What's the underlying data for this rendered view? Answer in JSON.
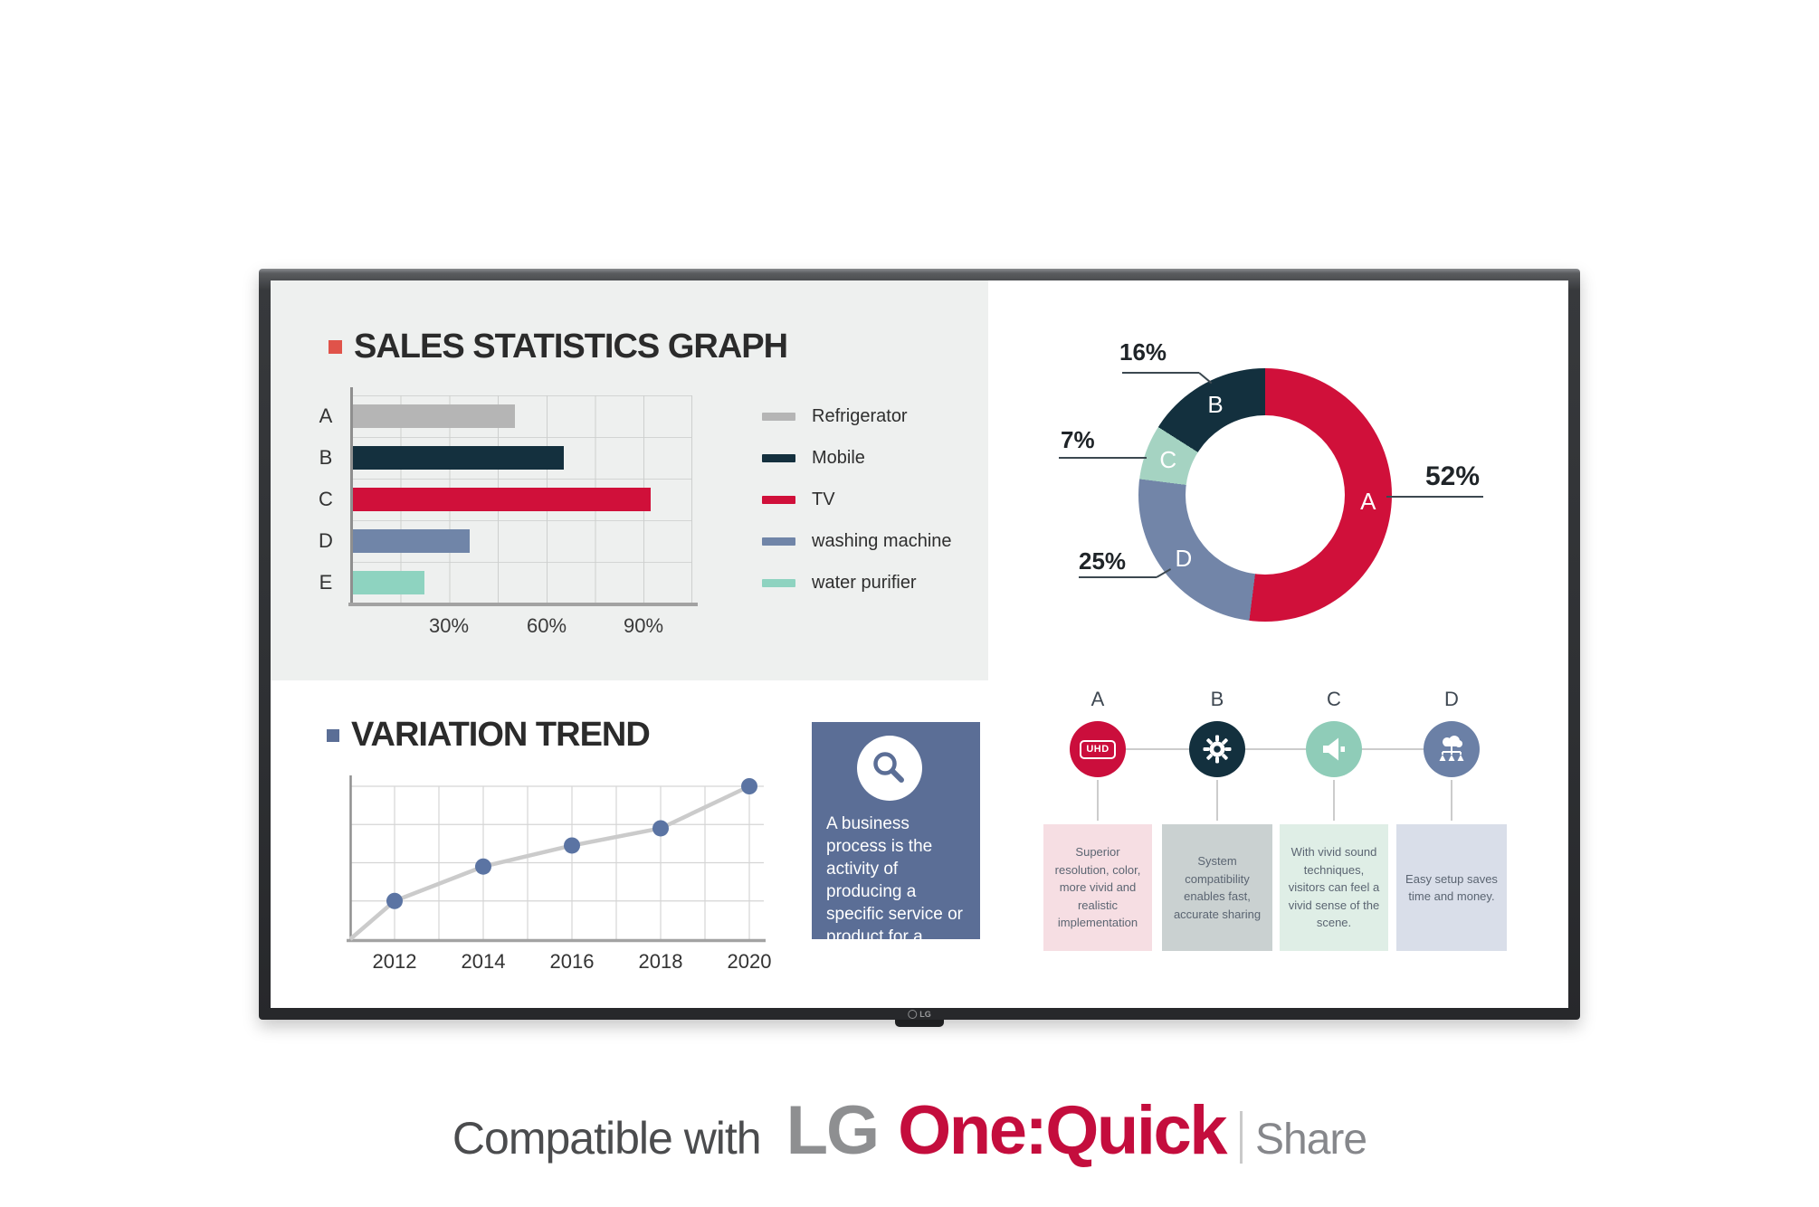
{
  "monitor": {
    "bezel_logo": "LG"
  },
  "sales_section": {
    "bullet_color": "#e0534a"
  },
  "trend_section": {
    "bullet_color": "#5b6e96"
  },
  "info_box": {
    "text": "A business process is the activity of producing a specific service or product for a customer.",
    "bg_color": "#5b6e96",
    "icon": "magnifier"
  },
  "features": {
    "connector_color": "#cccccc",
    "items": [
      {
        "letter": "A",
        "icon": "uhd-badge",
        "badge_text": "UHD",
        "circle_color": "#cb0e3c",
        "box_color": "#f6dee3",
        "text": "Superior resolution, color, more vivid and realistic implementation"
      },
      {
        "letter": "B",
        "icon": "gear",
        "circle_color": "#13303e",
        "box_color": "#cad1d1",
        "text": "System compatibility enables fast, accurate sharing"
      },
      {
        "letter": "C",
        "icon": "speaker",
        "circle_color": "#8fccb8",
        "box_color": "#dfeee6",
        "text": "With vivid sound techniques, visitors can feel a vivid sense of the scene."
      },
      {
        "letter": "D",
        "icon": "cloud-network",
        "circle_color": "#6b80a6",
        "box_color": "#d9dee9",
        "text": "Easy setup saves time and money."
      }
    ]
  },
  "tagline": {
    "prefix": "Compatible with",
    "brand": "LG",
    "product": "One:Quick",
    "suffix": "Share",
    "prefix_color": "#4b4c4e",
    "brand_color": "#8e8f91",
    "product_color": "#c40d3d",
    "suffix_color": "#86878b"
  },
  "chart_data": [
    {
      "type": "bar",
      "title": "SALES STATISTICS GRAPH",
      "orientation": "horizontal",
      "categories": [
        "A",
        "B",
        "C",
        "D",
        "E"
      ],
      "values": [
        50,
        65,
        92,
        36,
        22
      ],
      "unit": "%",
      "colors": [
        "#b5b5b5",
        "#14303e",
        "#d0103a",
        "#7085a8",
        "#8ed3c0"
      ],
      "x_ticks": [
        {
          "label": "30%",
          "value": 30
        },
        {
          "label": "60%",
          "value": 60
        },
        {
          "label": "90%",
          "value": 90
        }
      ],
      "xlim": [
        0,
        105
      ],
      "grid": true,
      "legend_position": "right",
      "legend": [
        {
          "label": "Refrigerator",
          "color": "#b5b5b5"
        },
        {
          "label": "Mobile",
          "color": "#14303e"
        },
        {
          "label": "TV",
          "color": "#d0103a"
        },
        {
          "label": "washing machine",
          "color": "#7085a8"
        },
        {
          "label": "water purifier",
          "color": "#8ed3c0"
        }
      ]
    },
    {
      "type": "pie",
      "subtype": "donut",
      "start_at": "top",
      "direction": "clockwise",
      "callout_unit": "%",
      "slices": [
        {
          "label": "A",
          "value": 52,
          "color": "#d0103a"
        },
        {
          "label": "D",
          "value": 25,
          "color": "#7285a8"
        },
        {
          "label": "C",
          "value": 7,
          "color": "#a5d3c2"
        },
        {
          "label": "B",
          "value": 16,
          "color": "#13303e"
        }
      ]
    },
    {
      "type": "line",
      "title": "VARIATION TREND",
      "x": [
        2012,
        2014,
        2016,
        2018,
        2020
      ],
      "values": [
        1.0,
        1.9,
        2.45,
        2.9,
        4.0
      ],
      "ylim": [
        0,
        4
      ],
      "starts_at_origin": true,
      "grid": true,
      "line_color": "#cbcbcb",
      "point_color": "#5b74a3"
    }
  ]
}
